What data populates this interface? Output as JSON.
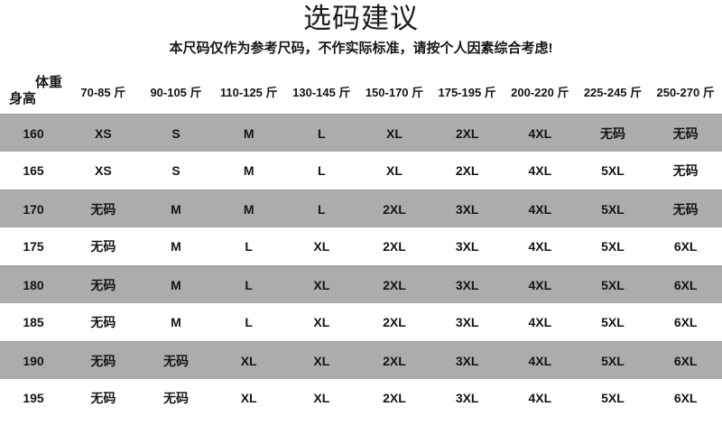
{
  "title": "选码建议",
  "subtitle": "本尺码仅作为参考尺码，不作实际标准，请按个人因素综合考虑!",
  "corner": {
    "top": "体重",
    "bottom": "身高"
  },
  "chart_data": {
    "type": "table",
    "columns": [
      "70-85 斤",
      "90-105 斤",
      "110-125 斤",
      "130-145 斤",
      "150-170 斤",
      "175-195 斤",
      "200-220 斤",
      "225-245 斤",
      "250-270 斤"
    ],
    "rows": [
      {
        "height": "160",
        "sizes": [
          "XS",
          "S",
          "M",
          "L",
          "XL",
          "2XL",
          "4XL",
          "无码",
          "无码"
        ]
      },
      {
        "height": "165",
        "sizes": [
          "XS",
          "S",
          "M",
          "L",
          "XL",
          "2XL",
          "4XL",
          "5XL",
          "无码"
        ]
      },
      {
        "height": "170",
        "sizes": [
          "无码",
          "M",
          "M",
          "L",
          "2XL",
          "3XL",
          "4XL",
          "5XL",
          "无码"
        ]
      },
      {
        "height": "175",
        "sizes": [
          "无码",
          "M",
          "L",
          "XL",
          "2XL",
          "3XL",
          "4XL",
          "5XL",
          "6XL"
        ]
      },
      {
        "height": "180",
        "sizes": [
          "无码",
          "M",
          "L",
          "XL",
          "2XL",
          "3XL",
          "4XL",
          "5XL",
          "6XL"
        ]
      },
      {
        "height": "185",
        "sizes": [
          "无码",
          "M",
          "L",
          "XL",
          "2XL",
          "3XL",
          "4XL",
          "5XL",
          "6XL"
        ]
      },
      {
        "height": "190",
        "sizes": [
          "无码",
          "无码",
          "XL",
          "XL",
          "2XL",
          "3XL",
          "4XL",
          "5XL",
          "6XL"
        ]
      },
      {
        "height": "195",
        "sizes": [
          "无码",
          "无码",
          "XL",
          "XL",
          "2XL",
          "3XL",
          "4XL",
          "5XL",
          "6XL"
        ]
      }
    ],
    "layout_hints": {
      "row_striping": "alternating starting gray at first data row",
      "legend_position": "none",
      "grid": "off"
    }
  },
  "colors": {
    "shaded_row": "#acacac",
    "background": "#ffffff",
    "text": "#141414"
  }
}
